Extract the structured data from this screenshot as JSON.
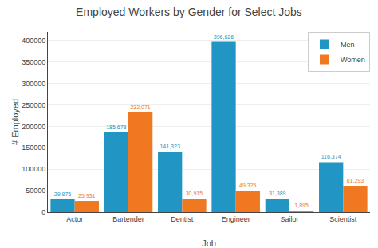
{
  "chart_data": {
    "type": "bar",
    "title": "Employed Workers by Gender for Select Jobs",
    "xlabel": "Job",
    "ylabel": "# Employed",
    "categories": [
      "Actor",
      "Bartender",
      "Dentist",
      "Engineer",
      "Sailor",
      "Scientist"
    ],
    "series": [
      {
        "name": "Men",
        "color": "#2196C4",
        "values": [
          29975,
          185678,
          141323,
          396626,
          31389,
          116374
        ],
        "value_labels": [
          "29,975",
          "185,678",
          "141,323",
          "396,626",
          "31,389",
          "116,374"
        ]
      },
      {
        "name": "Women",
        "color": "#F07820",
        "values": [
          25931,
          232071,
          30915,
          49325,
          1895,
          61293
        ],
        "value_labels": [
          "25,931",
          "232,071",
          "30,915",
          "49,325",
          "1,895",
          "61,293"
        ]
      }
    ],
    "ylim": [
      0,
      420000
    ],
    "yticks": [
      0,
      50000,
      100000,
      150000,
      200000,
      250000,
      300000,
      350000,
      400000
    ],
    "grid": true,
    "legend": "upper right",
    "data_labels": true
  }
}
